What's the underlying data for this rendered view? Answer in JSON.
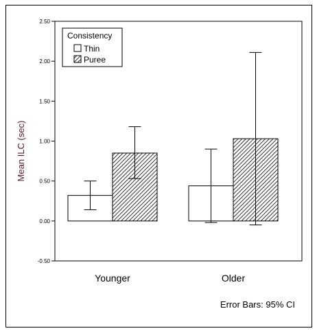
{
  "chart_data": {
    "type": "bar",
    "title": "",
    "xlabel": "",
    "ylabel": "Mean ILC (sec)",
    "categories": [
      "Younger",
      "Older"
    ],
    "series": [
      {
        "name": "Thin",
        "values": [
          0.32,
          0.44
        ],
        "ci_low": [
          0.14,
          -0.02
        ],
        "ci_high": [
          0.5,
          0.9
        ],
        "fill": "#ffffff"
      },
      {
        "name": "Puree",
        "values": [
          0.85,
          1.03
        ],
        "ci_low": [
          0.53,
          -0.05
        ],
        "ci_high": [
          1.18,
          2.11
        ],
        "fill": "hatch"
      }
    ],
    "ylim": [
      -0.5,
      2.5
    ],
    "yticks": [
      -0.5,
      0.0,
      0.5,
      1.0,
      1.5,
      2.0,
      2.5
    ],
    "ytick_labels": [
      "-0.50",
      "0.00",
      "0.50",
      "1.00",
      "1.50",
      "2.00",
      "2.50"
    ],
    "legend": {
      "title": "Consistency",
      "position": "top-left"
    },
    "note": "Error Bars: 95% CI",
    "grid": false
  }
}
